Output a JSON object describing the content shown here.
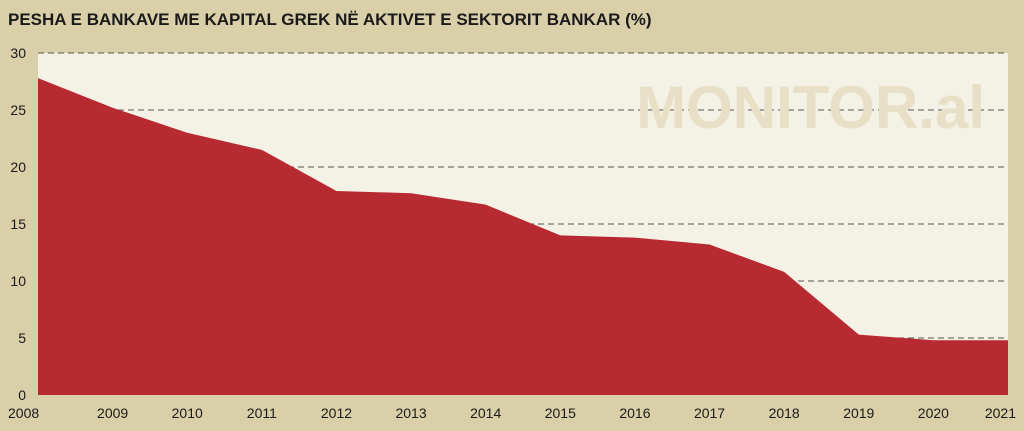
{
  "colors": {
    "frame": "#d9cfa8",
    "plot_bg": "#f4f1e5",
    "area": "#b82a31",
    "watermark": "#e7e0c6"
  },
  "watermark": "MONITOR.al",
  "chart_data": {
    "type": "area",
    "title": "PESHA E BANKAVE ME KAPITAL GREK NË AKTIVET E SEKTORIT BANKAR (%)",
    "xlabel": "",
    "ylabel": "",
    "x": [
      "2008",
      "2009",
      "2010",
      "2011",
      "2012",
      "2013",
      "2014",
      "2015",
      "2016",
      "2017",
      "2018",
      "2019",
      "2020",
      "2021"
    ],
    "values": [
      27.8,
      25.2,
      23.0,
      21.5,
      17.9,
      17.7,
      16.7,
      14.0,
      13.8,
      13.2,
      10.8,
      5.3,
      4.8,
      4.8
    ],
    "ylim": [
      0,
      30
    ],
    "yticks": [
      0,
      5,
      10,
      15,
      20,
      25,
      30
    ],
    "grid": true,
    "legend": "none"
  }
}
